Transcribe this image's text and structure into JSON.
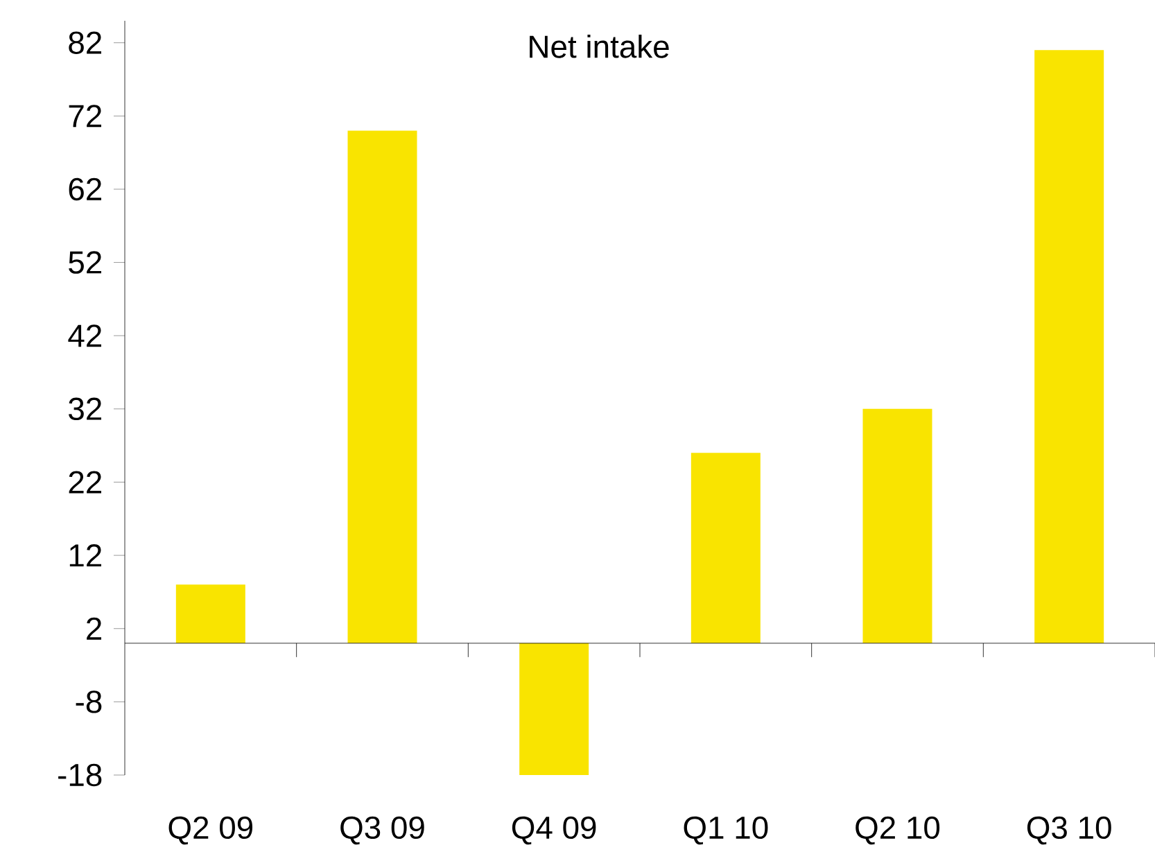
{
  "chart_data": {
    "type": "bar",
    "title": "Net intake",
    "categories": [
      "Q2 09",
      "Q3 09",
      "Q4 09",
      "Q1 10",
      "Q2 10",
      "Q3 10"
    ],
    "values": [
      8,
      70,
      -18,
      26,
      32,
      81
    ],
    "color": "#f9e400",
    "ylim": [
      -18,
      85
    ],
    "yticks": [
      -18,
      -8,
      2,
      12,
      22,
      32,
      42,
      52,
      62,
      72,
      82
    ]
  }
}
